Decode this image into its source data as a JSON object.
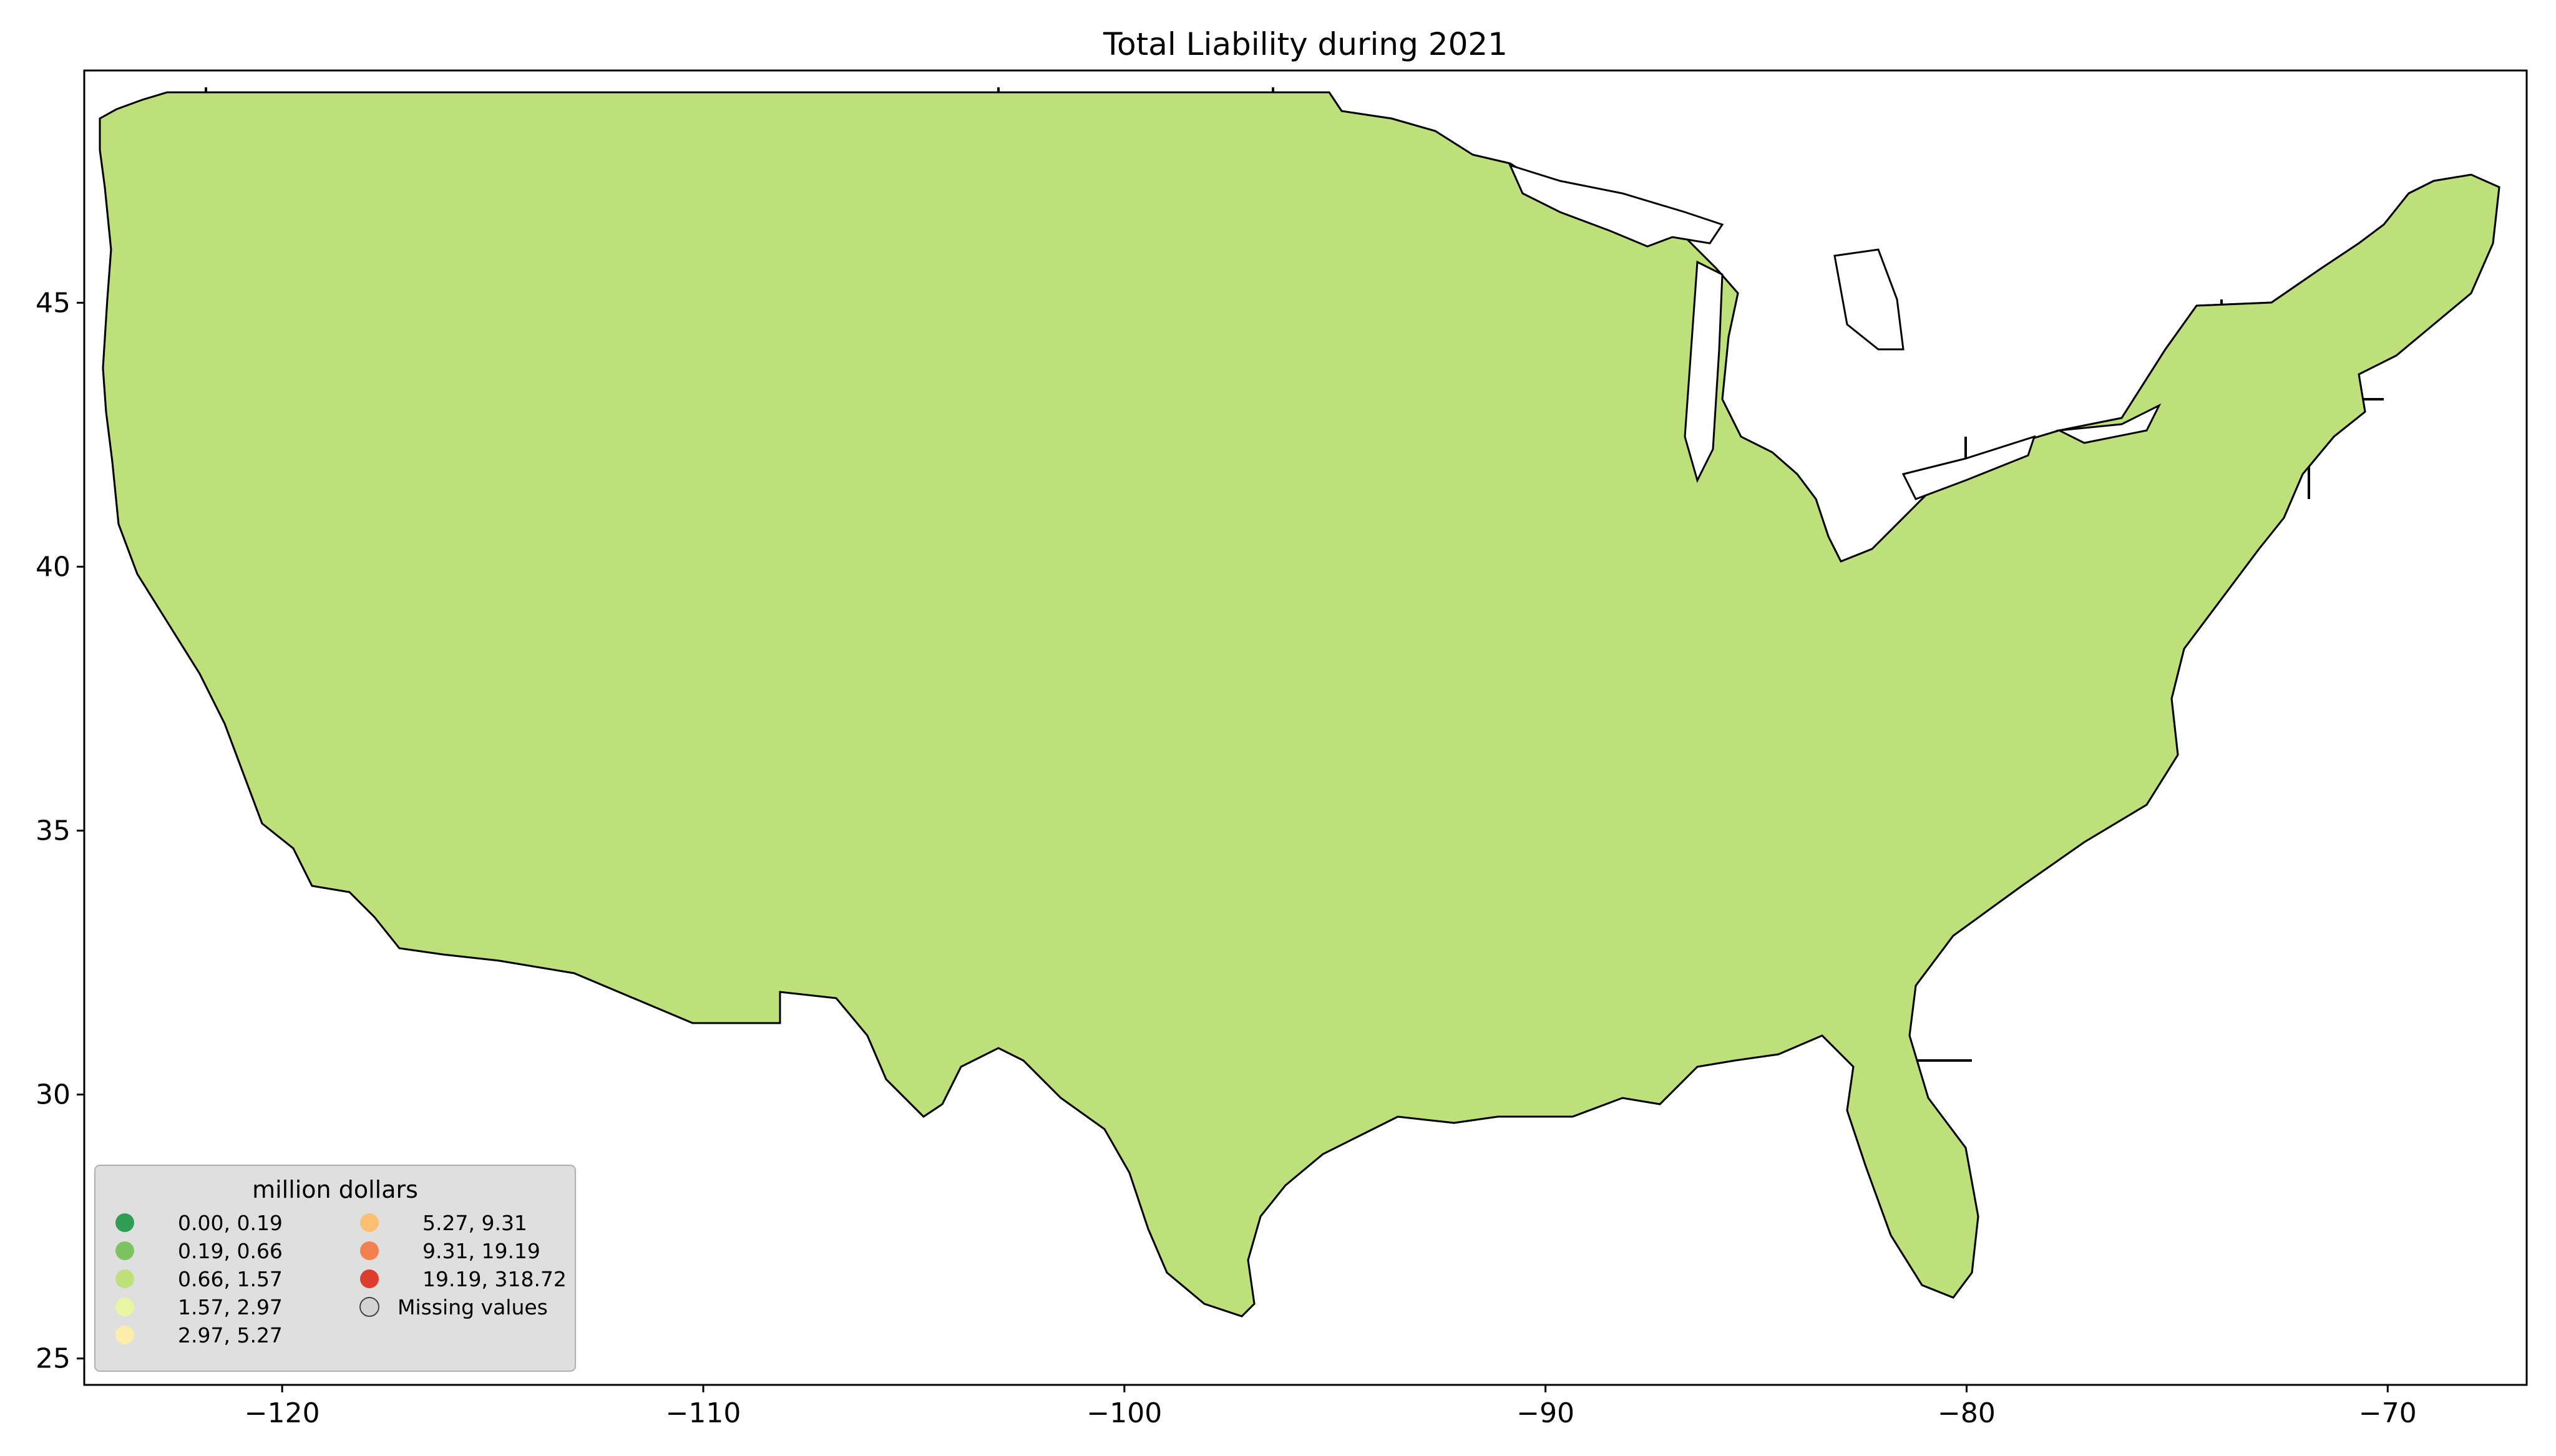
{
  "chart_data": {
    "type": "choropleth",
    "title": "Total Liability during 2021",
    "x_ticks": [
      "−120",
      "−110",
      "−100",
      "−90",
      "−80",
      "−70"
    ],
    "y_ticks": [
      "25",
      "30",
      "35",
      "40",
      "45"
    ],
    "xlim": [
      -124.7,
      -66.7
    ],
    "ylim": [
      24.5,
      49.4
    ],
    "legend": {
      "title": "million dollars",
      "placement": "lower-left",
      "items": [
        {
          "label": "0.00,   0.19",
          "color": "#2f9e54"
        },
        {
          "label": "0.19,   0.66",
          "color": "#7cc462"
        },
        {
          "label": "0.66,   1.57",
          "color": "#bde07a"
        },
        {
          "label": "1.57,   2.97",
          "color": "#e8f5a3"
        },
        {
          "label": "2.97,   5.27",
          "color": "#fdedaa"
        },
        {
          "label": "5.27,   9.31",
          "color": "#fdbf71"
        },
        {
          "label": "9.31,  19.19",
          "color": "#f3804f"
        },
        {
          "label": "19.19, 318.72",
          "color": "#dc3d2d"
        },
        {
          "label": "Missing values",
          "color": "#d3d3d3"
        }
      ]
    }
  }
}
